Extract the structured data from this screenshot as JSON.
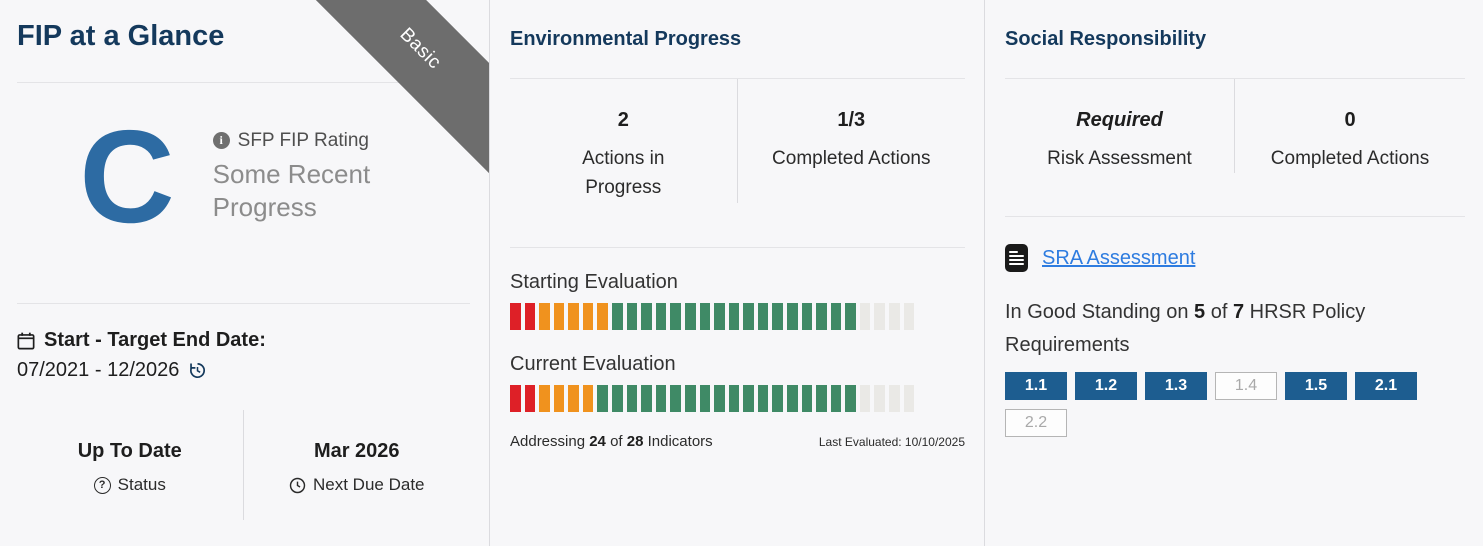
{
  "colors": {
    "accent_navy": "#14395c",
    "rating_blue": "#2d6ba3",
    "badge_blue": "#1d5d90",
    "link_blue": "#2e7ce0",
    "ribbon_gray": "#6d6d6d",
    "bar_red": "#de2027",
    "bar_orange": "#f0921e",
    "bar_green": "#3f8a66",
    "bar_gray": "#eae9e6"
  },
  "left_card": {
    "title": "FIP at a Glance",
    "ribbon": "Basic",
    "rating": {
      "grade": "C",
      "label": "SFP FIP Rating",
      "description": "Some Recent Progress"
    },
    "dates": {
      "label": "Start - Target End Date:",
      "value": "07/2021 - 12/2026"
    },
    "stats": [
      {
        "value": "Up To Date",
        "label": "Status"
      },
      {
        "value": "Mar 2026",
        "label": "Next Due Date"
      }
    ]
  },
  "environmental": {
    "title": "Environmental Progress",
    "stats": [
      {
        "value": "2",
        "label": "Actions in Progress"
      },
      {
        "value": "1/3",
        "label": "Completed Actions"
      }
    ],
    "starting_label": "Starting Evaluation",
    "current_label": "Current Evaluation",
    "bars": {
      "starting": {
        "red": 2,
        "orange": 5,
        "green": 17,
        "gray": 4
      },
      "current": {
        "red": 2,
        "orange": 4,
        "green": 18,
        "gray": 4
      }
    },
    "addressing": {
      "prefix": "Addressing ",
      "count": "24",
      "mid": " of ",
      "total": "28",
      "suffix": " Indicators"
    },
    "last_evaluated": "Last Evaluated: 10/10/2025"
  },
  "social": {
    "title": "Social Responsibility",
    "stats": [
      {
        "value": "Required",
        "label": "Risk Assessment"
      },
      {
        "value": "0",
        "label": "Completed Actions"
      }
    ],
    "sra_link": "SRA Assessment",
    "standing": {
      "prefix": "In Good Standing on ",
      "count": "5",
      "mid": " of ",
      "total": "7",
      "suffix": " HRSR Policy Requirements"
    },
    "badges": [
      {
        "label": "1.1",
        "met": true
      },
      {
        "label": "1.2",
        "met": true
      },
      {
        "label": "1.3",
        "met": true
      },
      {
        "label": "1.4",
        "met": false
      },
      {
        "label": "1.5",
        "met": true
      },
      {
        "label": "2.1",
        "met": true
      },
      {
        "label": "2.2",
        "met": false
      }
    ]
  }
}
